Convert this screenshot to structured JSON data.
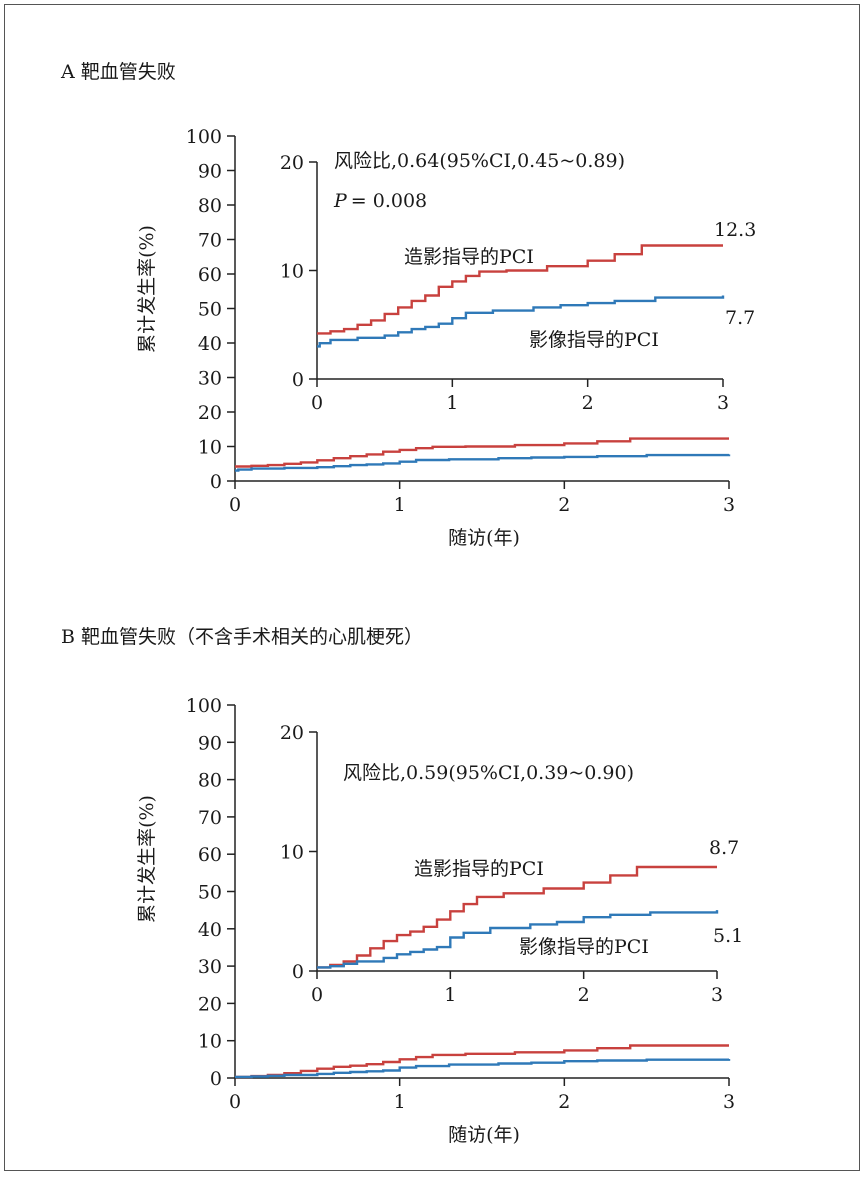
{
  "colors": {
    "angio": "#c8413e",
    "imaging": "#2f79b8",
    "axis": "#222222"
  },
  "chart_data": [
    {
      "type": "line",
      "panel": "A",
      "title": "A 靶血管失败",
      "ylabel": "累计发生率(%)",
      "xlabel": "随访(年)",
      "xlim": [
        0,
        3
      ],
      "ylim": [
        0,
        100
      ],
      "xticks": [
        "0",
        "1",
        "2",
        "3"
      ],
      "yticks": [
        "0",
        "10",
        "20",
        "30",
        "40",
        "50",
        "60",
        "70",
        "80",
        "90",
        "100"
      ],
      "series": [
        {
          "name": "造影指导的PCI",
          "color": "#c8413e",
          "x": [
            0,
            0.1,
            0.2,
            0.3,
            0.4,
            0.5,
            0.6,
            0.7,
            0.8,
            0.9,
            1.0,
            1.1,
            1.2,
            1.4,
            1.7,
            2.0,
            2.2,
            2.4,
            3.0
          ],
          "y": [
            4.2,
            4.4,
            4.6,
            5.0,
            5.4,
            6.0,
            6.6,
            7.2,
            7.7,
            8.5,
            9.0,
            9.5,
            9.9,
            10.0,
            10.4,
            10.9,
            11.5,
            12.3,
            12.3
          ]
        },
        {
          "name": "影像指导的PCI",
          "color": "#2f79b8",
          "x": [
            0,
            0.02,
            0.1,
            0.3,
            0.5,
            0.6,
            0.7,
            0.8,
            0.9,
            1.0,
            1.1,
            1.3,
            1.6,
            1.8,
            2.0,
            2.2,
            2.5,
            3.0
          ],
          "y": [
            3.0,
            3.3,
            3.6,
            3.8,
            4.0,
            4.3,
            4.6,
            4.8,
            5.1,
            5.6,
            6.1,
            6.3,
            6.6,
            6.8,
            7.0,
            7.2,
            7.5,
            7.7
          ]
        }
      ],
      "inset": {
        "xlim": [
          0,
          3
        ],
        "ylim": [
          0,
          20
        ],
        "xticks": [
          "0",
          "1",
          "2",
          "3"
        ],
        "yticks": [
          "0",
          "10",
          "20"
        ],
        "hazard_text": "风险比,0.64(95%CI,0.45~0.89)",
        "p_label": "P",
        "p_value": "= 0.008",
        "series_labels": [
          "造影指导的PCI",
          "影像指导的PCI"
        ],
        "end_values": [
          "12.3",
          "7.7"
        ]
      }
    },
    {
      "type": "line",
      "panel": "B",
      "title": "B 靶血管失败（不含手术相关的心肌梗死）",
      "ylabel": "累计发生率(%)",
      "xlabel": "随访(年)",
      "xlim": [
        0,
        3
      ],
      "ylim": [
        0,
        100
      ],
      "xticks": [
        "0",
        "1",
        "2",
        "3"
      ],
      "yticks": [
        "0",
        "10",
        "20",
        "30",
        "40",
        "50",
        "60",
        "70",
        "80",
        "90",
        "100"
      ],
      "series": [
        {
          "name": "造影指导的PCI",
          "color": "#c8413e",
          "x": [
            0,
            0.1,
            0.2,
            0.3,
            0.4,
            0.5,
            0.6,
            0.7,
            0.8,
            0.9,
            1.0,
            1.1,
            1.2,
            1.4,
            1.7,
            2.0,
            2.2,
            2.4,
            3.0
          ],
          "y": [
            0.3,
            0.5,
            0.8,
            1.3,
            1.9,
            2.5,
            3.0,
            3.3,
            3.7,
            4.3,
            5.0,
            5.6,
            6.2,
            6.5,
            6.9,
            7.4,
            8.0,
            8.7,
            8.7
          ]
        },
        {
          "name": "影像指导的PCI",
          "color": "#2f79b8",
          "x": [
            0,
            0.1,
            0.2,
            0.3,
            0.5,
            0.6,
            0.7,
            0.8,
            0.9,
            1.0,
            1.1,
            1.3,
            1.6,
            1.8,
            2.0,
            2.2,
            2.5,
            3.0
          ],
          "y": [
            0.3,
            0.4,
            0.6,
            0.8,
            1.1,
            1.4,
            1.6,
            1.8,
            2.0,
            2.8,
            3.2,
            3.6,
            3.9,
            4.1,
            4.5,
            4.7,
            4.9,
            5.1
          ]
        }
      ],
      "inset": {
        "xlim": [
          0,
          3
        ],
        "ylim": [
          0,
          20
        ],
        "xticks": [
          "0",
          "1",
          "2",
          "3"
        ],
        "yticks": [
          "0",
          "10",
          "20"
        ],
        "hazard_text": "风险比,0.59(95%CI,0.39~0.90)",
        "p_label": "",
        "p_value": "",
        "series_labels": [
          "造影指导的PCI",
          "影像指导的PCI"
        ],
        "end_values": [
          "8.7",
          "5.1"
        ]
      }
    }
  ]
}
